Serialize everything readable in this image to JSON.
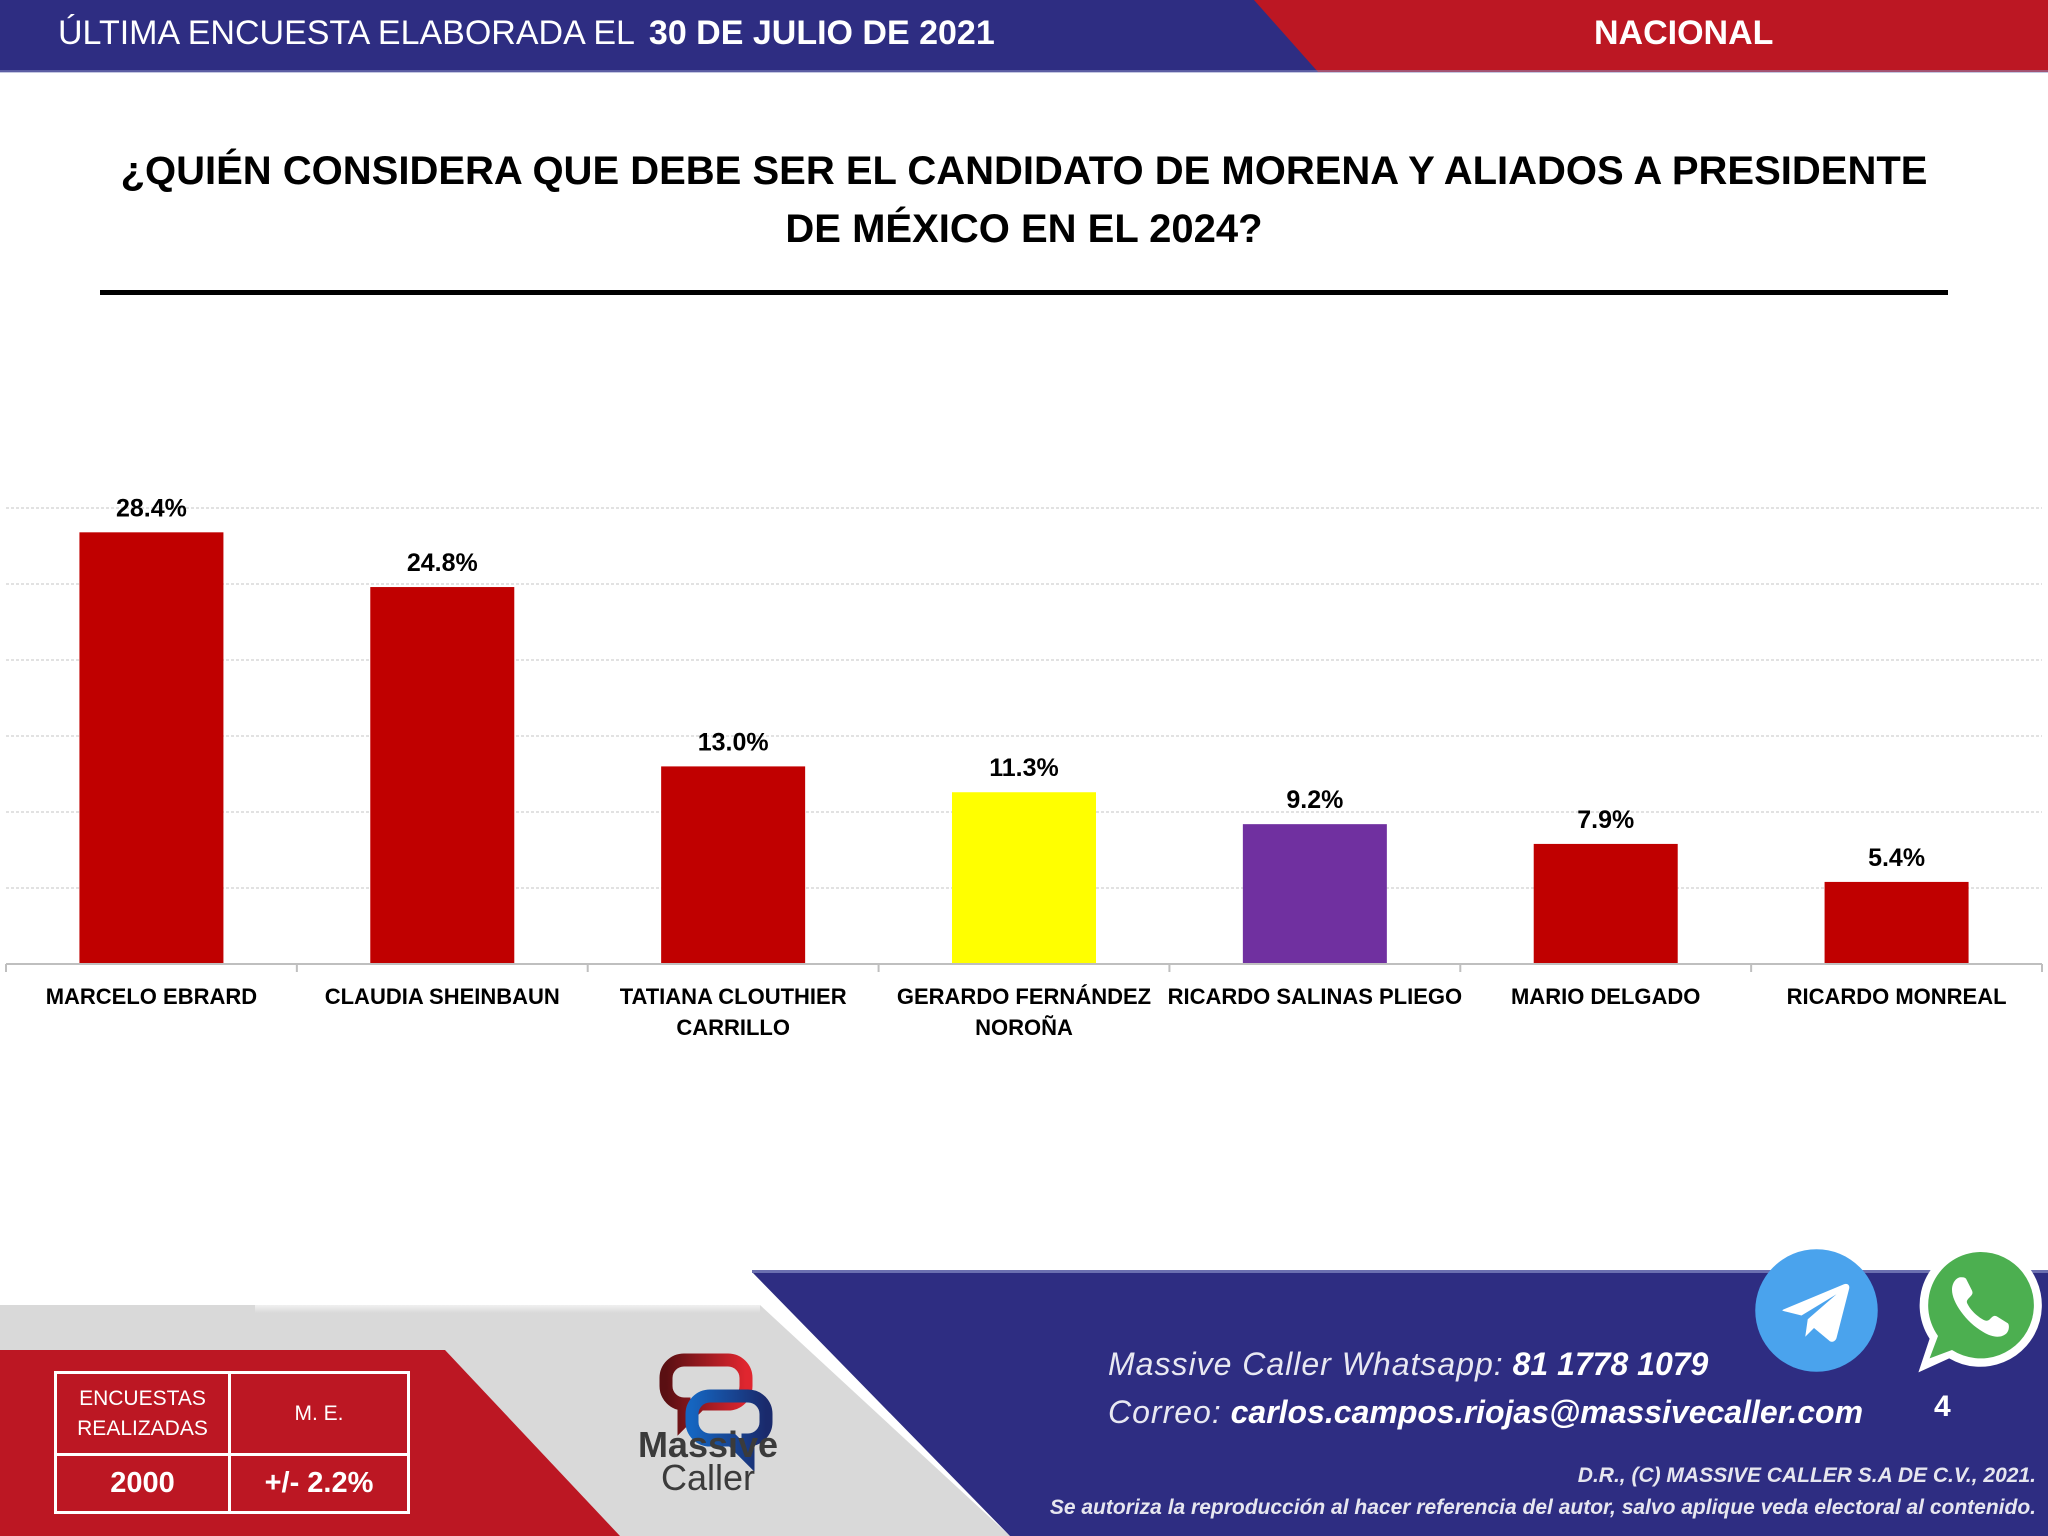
{
  "header": {
    "survey_prefix": "ÚLTIMA ENCUESTA ELABORADA EL",
    "survey_date": "30 DE JULIO DE 2021",
    "scope": "NACIONAL",
    "colors": {
      "blue": "#2e2d82",
      "red": "#bc1723"
    }
  },
  "question": {
    "line1": "¿QUIÉN CONSIDERA QUE DEBE SER EL CANDIDATO DE MORENA Y ALIADOS A PRESIDENTE",
    "line2": "DE MÉXICO EN EL 2024?"
  },
  "chart_data": {
    "type": "bar",
    "title": "¿QUIÉN CONSIDERA QUE DEBE SER EL CANDIDATO DE MORENA Y ALIADOS A PRESIDENTE DE MÉXICO EN EL 2024?",
    "categories": [
      [
        "MARCELO EBRARD"
      ],
      [
        "CLAUDIA SHEINBAUN"
      ],
      [
        "TATIANA CLOUTHIER",
        "CARRILLO"
      ],
      [
        "GERARDO FERNÁNDEZ",
        "NOROÑA"
      ],
      [
        "RICARDO SALINAS PLIEGO"
      ],
      [
        "MARIO DELGADO"
      ],
      [
        "RICARDO MONREAL"
      ]
    ],
    "values": [
      28.4,
      24.8,
      13.0,
      11.3,
      9.2,
      7.9,
      5.4
    ],
    "value_labels": [
      "28.4%",
      "24.8%",
      "13.0%",
      "11.3%",
      "9.2%",
      "7.9%",
      "5.4%"
    ],
    "bar_colors": [
      "#c00000",
      "#c00000",
      "#c00000",
      "#ffff00",
      "#7030a0",
      "#c00000",
      "#c00000"
    ],
    "xlabel": "",
    "ylabel": "",
    "ylim": [
      0,
      30
    ],
    "gridline_step": 5,
    "grid": true,
    "y_tick_labels_visible": false,
    "legend": "none"
  },
  "stats": {
    "surveys_label": "ENCUESTAS REALIZADAS",
    "surveys_label_lines": [
      "ENCUESTAS",
      "REALIZADAS"
    ],
    "margin_label": "M. E.",
    "surveys_value": "2000",
    "margin_value": "+/- 2.2%"
  },
  "logo": {
    "line1": "Massive",
    "line2": "Caller"
  },
  "footer": {
    "whatsapp_label": "Massive Caller Whatsapp:",
    "whatsapp_value": "81 1778 1079",
    "email_label": "Correo:",
    "email_value": "carlos.campos.riojas@massivecaller.com",
    "page_number": "4",
    "copyright": "D.R., (C) MASSIVE CALLER S.A DE C.V., 2021.",
    "notice": "Se autoriza la reproducción al hacer referencia del autor, salvo aplique veda electoral al contenido.",
    "icons": [
      "telegram-icon",
      "whatsapp-icon"
    ]
  }
}
